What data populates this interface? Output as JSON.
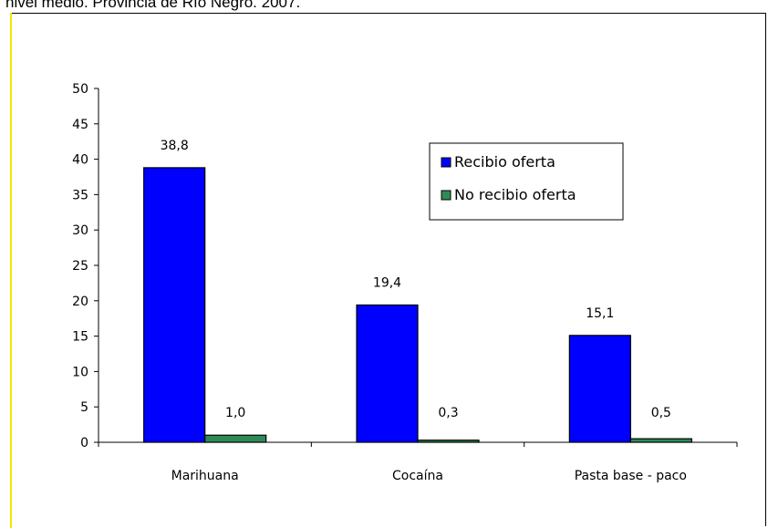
{
  "caption": "nivel medio. Provincia de Río Negro. 2007.",
  "chart_data": {
    "type": "bar",
    "categories": [
      "Marihuana",
      "Cocaína",
      "Pasta base - paco"
    ],
    "series": [
      {
        "name": "Recibio oferta",
        "values": [
          38.8,
          19.4,
          15.1
        ],
        "labels": [
          "38,8",
          "19,4",
          "15,1"
        ],
        "color": "#0000ff"
      },
      {
        "name": "No recibio oferta",
        "values": [
          1.0,
          0.3,
          0.5
        ],
        "labels": [
          "1,0",
          "0,3",
          "0,5"
        ],
        "color": "#2e8b57"
      }
    ],
    "ylim": [
      0,
      50
    ],
    "yticks": [
      "0",
      "5",
      "10",
      "15",
      "20",
      "25",
      "30",
      "35",
      "40",
      "45",
      "50"
    ],
    "grid": false,
    "legend_position": "top-right"
  }
}
